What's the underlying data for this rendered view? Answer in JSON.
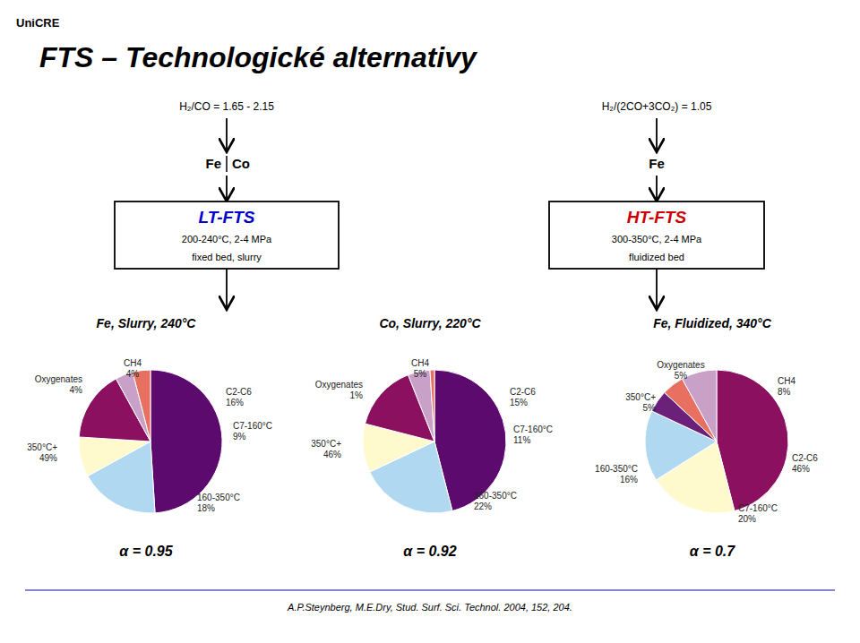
{
  "title": "FTS – Technologické alternativy",
  "annotations": [
    {
      "text": "UniCRE"
    },
    {
      "text": "H₂/CO = 1.65 - 2.15"
    },
    {
      "text": "H₂/(2CO+3CO₂) = 1.05"
    },
    {
      "text": "Fe"
    },
    {
      "text": "Co"
    },
    {
      "text": "Fe"
    },
    {
      "text": "LT-FTS",
      "color": "#0000cc"
    },
    {
      "text": "200-240°C, 2-4 MPa"
    },
    {
      "text": "fixed bed, slurry"
    },
    {
      "text": "HT-FTS",
      "color": "#cc0000"
    },
    {
      "text": "300-350°C, 2-4 MPa"
    },
    {
      "text": "fluidized bed"
    },
    {
      "text": "A.P.Steynberg, M.E.Dry, Stud. Surf. Sci. Technol. 2004, 152, 204."
    }
  ],
  "chart_data": [
    {
      "type": "pie",
      "title": "Fe, Slurry, 240°C",
      "annotations": [
        "α = 0.95"
      ],
      "categories": [
        "350°C+",
        "160-350°C",
        "C7-160°C",
        "C2-C6",
        "CH4",
        "Oxygenates"
      ],
      "values": [
        49,
        18,
        9,
        16,
        4,
        4
      ],
      "value_labels": [
        "49%",
        "18%",
        "9%",
        "16%",
        "4%",
        "4%"
      ],
      "colors": [
        "#5c0a6e",
        "#b0d8f0",
        "#fffacd",
        "#8b1060",
        "#c8a0c8",
        "#e87060"
      ],
      "data_labels": true
    },
    {
      "type": "pie",
      "title": "Co, Slurry, 220°C",
      "annotations": [
        "α = 0.92"
      ],
      "categories": [
        "350°C+",
        "160-350°C",
        "C7-160°C",
        "C2-C6",
        "CH4",
        "Oxygenates"
      ],
      "values": [
        46,
        22,
        11,
        15,
        5,
        1
      ],
      "value_labels": [
        "46%",
        "22%",
        "11%",
        "15%",
        "5%",
        "1%"
      ],
      "colors": [
        "#5c0a6e",
        "#b0d8f0",
        "#fffacd",
        "#8b1060",
        "#c8a0c8",
        "#e87060"
      ],
      "data_labels": true
    },
    {
      "type": "pie",
      "title": "Fe, Fluidized, 340°C",
      "annotations": [
        "α = 0.7"
      ],
      "categories": [
        "C2-C6",
        "C7-160°C",
        "160-350°C",
        "350°C+",
        "Oxygenates",
        "CH4"
      ],
      "values": [
        46,
        20,
        16,
        5,
        5,
        8
      ],
      "value_labels": [
        "46%",
        "20%",
        "16%",
        "5%",
        "5%",
        "8%"
      ],
      "colors": [
        "#8b1060",
        "#fffacd",
        "#b0d8f0",
        "#6b207a",
        "#e87060",
        "#c8a0c8"
      ],
      "data_labels": true
    }
  ]
}
